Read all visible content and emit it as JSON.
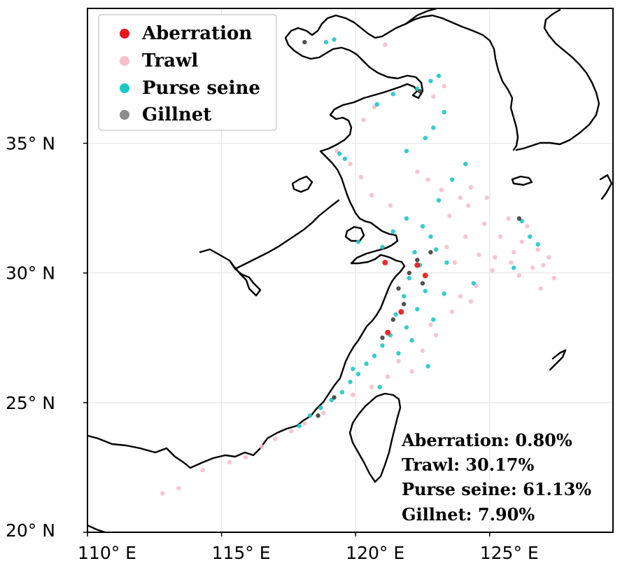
{
  "chart_data": {
    "type": "scatter",
    "title": "",
    "xlabel": "",
    "ylabel": "",
    "xlim": [
      110,
      129.6
    ],
    "ylim": [
      20,
      40.2
    ],
    "x_ticks": [
      {
        "value": 110,
        "label": "110° E"
      },
      {
        "value": 115,
        "label": "115° E"
      },
      {
        "value": 120,
        "label": "120° E"
      },
      {
        "value": 125,
        "label": "125° E"
      }
    ],
    "y_ticks": [
      {
        "value": 20,
        "label": "20° N"
      },
      {
        "value": 25,
        "label": "25° N"
      },
      {
        "value": 30,
        "label": "30° N"
      },
      {
        "value": 35,
        "label": "35° N"
      }
    ],
    "grid": true,
    "legend_placement": "top-left",
    "series": [
      {
        "name": "Aberration",
        "color": "#e8141c",
        "points": [
          [
            121.1,
            30.4
          ],
          [
            122.6,
            29.9
          ],
          [
            121.2,
            27.7
          ],
          [
            122.3,
            30.3
          ],
          [
            121.7,
            28.5
          ]
        ]
      },
      {
        "name": "Trawl",
        "color": "#f6bfc9",
        "points": [
          [
            123.5,
            32.2
          ],
          [
            124.2,
            32.6
          ],
          [
            124.8,
            31.9
          ],
          [
            125.4,
            31.4
          ],
          [
            125.9,
            30.8
          ],
          [
            126.6,
            30.2
          ],
          [
            127.2,
            30.6
          ],
          [
            127.4,
            29.8
          ],
          [
            126.9,
            29.4
          ],
          [
            126.2,
            31.2
          ],
          [
            125.1,
            30.1
          ],
          [
            124.5,
            29.5
          ],
          [
            123.9,
            29.1
          ],
          [
            124.9,
            32.9
          ],
          [
            125.7,
            32.1
          ],
          [
            126.4,
            31.8
          ],
          [
            126.8,
            30.9
          ],
          [
            124.1,
            31.4
          ],
          [
            124.6,
            30.7
          ],
          [
            123.4,
            31.0
          ],
          [
            125.2,
            30.6
          ],
          [
            123.9,
            32.9
          ],
          [
            123.2,
            33.2
          ],
          [
            122.7,
            33.6
          ],
          [
            122.3,
            33.9
          ],
          [
            123.7,
            30.4
          ],
          [
            126.1,
            29.9
          ],
          [
            127.0,
            30.3
          ],
          [
            124.3,
            28.9
          ],
          [
            123.6,
            28.5
          ],
          [
            122.8,
            28.0
          ],
          [
            123.0,
            27.6
          ],
          [
            122.5,
            27.0
          ],
          [
            121.6,
            26.6
          ],
          [
            122.1,
            26.2
          ],
          [
            121.2,
            26.0
          ],
          [
            120.6,
            25.6
          ],
          [
            119.9,
            25.3
          ],
          [
            118.8,
            24.6
          ],
          [
            118.1,
            24.2
          ],
          [
            117.6,
            23.9
          ],
          [
            117.0,
            23.6
          ],
          [
            116.5,
            23.3
          ],
          [
            115.9,
            22.9
          ],
          [
            115.3,
            22.7
          ],
          [
            114.3,
            22.4
          ],
          [
            113.4,
            21.7
          ],
          [
            112.8,
            21.5
          ],
          [
            120.3,
            35.9
          ],
          [
            120.7,
            36.4
          ],
          [
            121.1,
            38.8
          ],
          [
            119.3,
            34.7
          ],
          [
            119.8,
            34.2
          ],
          [
            120.2,
            33.7
          ],
          [
            120.6,
            33.0
          ],
          [
            121.3,
            32.6
          ],
          [
            123.3,
            37.2
          ],
          [
            122.9,
            36.8
          ],
          [
            124.3,
            33.3
          ],
          [
            125.8,
            30.4
          ]
        ]
      },
      {
        "name": "Purse seine",
        "color": "#1fc7c7",
        "points": [
          [
            122.2,
            30.8
          ],
          [
            122.4,
            30.3
          ],
          [
            122.0,
            29.8
          ],
          [
            122.6,
            29.3
          ],
          [
            121.8,
            29.1
          ],
          [
            122.3,
            28.6
          ],
          [
            121.5,
            28.4
          ],
          [
            121.9,
            27.9
          ],
          [
            121.3,
            27.6
          ],
          [
            121.0,
            27.2
          ],
          [
            120.7,
            26.8
          ],
          [
            120.4,
            26.5
          ],
          [
            120.1,
            26.1
          ],
          [
            119.8,
            25.8
          ],
          [
            119.5,
            25.4
          ],
          [
            119.1,
            25.1
          ],
          [
            118.7,
            24.8
          ],
          [
            118.3,
            24.5
          ],
          [
            117.9,
            24.1
          ],
          [
            123.0,
            30.9
          ],
          [
            123.4,
            30.4
          ],
          [
            122.8,
            31.4
          ],
          [
            122.5,
            31.8
          ],
          [
            121.9,
            32.1
          ],
          [
            121.4,
            31.6
          ],
          [
            121.0,
            31.0
          ],
          [
            123.3,
            29.2
          ],
          [
            122.9,
            28.2
          ],
          [
            122.1,
            27.4
          ],
          [
            121.6,
            26.9
          ],
          [
            123.1,
            32.8
          ],
          [
            123.6,
            33.6
          ],
          [
            124.1,
            34.2
          ],
          [
            122.9,
            35.6
          ],
          [
            123.3,
            36.2
          ],
          [
            122.8,
            37.4
          ],
          [
            123.1,
            37.6
          ],
          [
            122.3,
            37.1
          ],
          [
            122.6,
            35.2
          ],
          [
            121.9,
            34.7
          ],
          [
            119.4,
            34.6
          ],
          [
            119.6,
            34.4
          ],
          [
            120.1,
            31.2
          ],
          [
            126.2,
            32.0
          ],
          [
            126.5,
            31.4
          ],
          [
            126.8,
            31.1
          ],
          [
            125.9,
            30.2
          ],
          [
            124.4,
            29.6
          ],
          [
            121.4,
            36.9
          ],
          [
            120.8,
            36.5
          ],
          [
            118.9,
            38.9
          ],
          [
            119.2,
            39.0
          ],
          [
            122.7,
            26.4
          ],
          [
            120.9,
            25.6
          ],
          [
            119.9,
            26.3
          ]
        ]
      },
      {
        "name": "Gillnet",
        "color": "#333333",
        "points": [
          [
            122.3,
            30.5
          ],
          [
            122.0,
            30.0
          ],
          [
            122.5,
            29.6
          ],
          [
            121.8,
            28.8
          ],
          [
            121.4,
            28.2
          ],
          [
            121.0,
            27.5
          ],
          [
            122.4,
            37.0
          ],
          [
            118.1,
            38.9
          ],
          [
            126.1,
            32.1
          ],
          [
            118.6,
            24.5
          ],
          [
            119.2,
            25.2
          ],
          [
            122.8,
            30.8
          ],
          [
            121.6,
            29.4
          ]
        ]
      }
    ],
    "annotations": [
      {
        "label": "Aberration",
        "value": "0.80%"
      },
      {
        "label": "Trawl",
        "value": "30.17%"
      },
      {
        "label": "Purse seine",
        "value": "61.13%"
      },
      {
        "label": "Gillnet",
        "value": "7.90%"
      }
    ]
  },
  "legend": [
    {
      "label": "Aberration",
      "color": "#e8141c"
    },
    {
      "label": "Trawl",
      "color": "#f6bfc9"
    },
    {
      "label": "Purse seine",
      "color": "#1fc7c7"
    },
    {
      "label": "Gillnet",
      "color": "#8c8c8c"
    }
  ],
  "stats": [
    "Aberration: 0.80%",
    "Trawl: 30.17%",
    "Purse seine: 61.13%",
    "Gillnet: 7.90%"
  ]
}
